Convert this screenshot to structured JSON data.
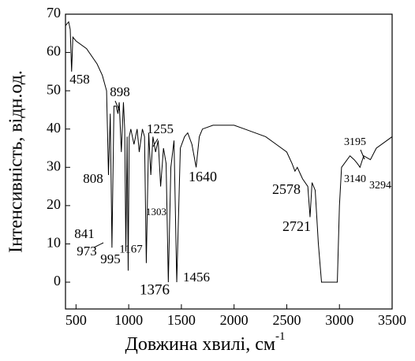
{
  "chart_data": {
    "type": "line",
    "xlabel": "Довжина хвилі, см",
    "xlabel_superscript": "-1",
    "ylabel": "Інтенсивність, відн.од.",
    "xlim": [
      400,
      3500
    ],
    "xticks": [
      500,
      1000,
      1500,
      2000,
      2500,
      3000,
      3500
    ],
    "ylim": [
      -7,
      70
    ],
    "yticks": [
      0,
      10,
      20,
      30,
      40,
      50,
      60,
      70
    ],
    "series": [
      {
        "color": "#000000",
        "x": [
          400,
          430,
          445,
          458,
          470,
          500,
          600,
          700,
          750,
          790,
          808,
          825,
          841,
          860,
          880,
          898,
          910,
          930,
          950,
          962,
          973,
          985,
          995,
          1005,
          1020,
          1050,
          1080,
          1100,
          1130,
          1150,
          1167,
          1190,
          1210,
          1230,
          1255,
          1280,
          1303,
          1330,
          1355,
          1376,
          1400,
          1430,
          1456,
          1490,
          1530,
          1560,
          1600,
          1640,
          1670,
          1700,
          1800,
          2000,
          2100,
          2200,
          2300,
          2400,
          2500,
          2550,
          2578,
          2600,
          2650,
          2700,
          2721,
          2740,
          2770,
          2800,
          2830,
          2900,
          2980,
          3000,
          3020,
          3100,
          3140,
          3170,
          3195,
          3230,
          3294,
          3350,
          3450,
          3500
        ],
        "values": [
          67,
          68,
          66,
          55,
          64,
          63,
          61,
          57,
          54,
          50,
          28,
          44,
          9,
          46,
          46,
          44,
          47,
          34,
          47,
          40,
          8,
          38,
          3,
          38,
          40,
          36,
          40,
          34,
          40,
          38,
          5,
          39,
          28,
          38,
          34,
          37,
          25,
          35,
          31,
          0,
          30,
          37,
          0,
          35,
          38,
          39,
          36,
          30,
          38,
          40,
          41,
          41,
          40,
          39,
          38,
          36,
          34,
          31,
          29,
          30,
          27,
          25,
          17,
          26,
          24,
          10,
          0,
          0,
          0,
          20,
          30,
          33,
          32,
          31,
          30,
          33,
          32,
          35,
          37,
          38
        ]
      }
    ],
    "annotations": [
      "458",
      "898",
      "808",
      "841",
      "973",
      "995",
      "1167",
      "1303",
      "1255",
      "1376",
      "1456",
      "1640",
      "2578",
      "2721",
      "3195",
      "3140",
      "3294"
    ]
  }
}
